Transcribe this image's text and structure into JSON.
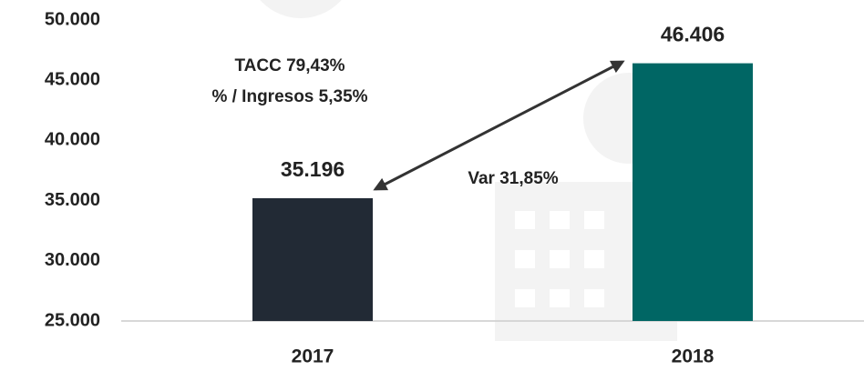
{
  "chart_data": {
    "type": "bar",
    "categories": [
      "2017",
      "2018"
    ],
    "values": [
      35196,
      46406
    ],
    "value_labels": [
      "35.196",
      "46.406"
    ],
    "colors": [
      "#222a35",
      "#006664"
    ],
    "ylim": [
      25000,
      50000
    ],
    "yticks": [
      {
        "value": 25000,
        "label": "25.000"
      },
      {
        "value": 30000,
        "label": "30.000"
      },
      {
        "value": 35000,
        "label": "35.000"
      },
      {
        "value": 40000,
        "label": "40.000"
      },
      {
        "value": 45000,
        "label": "45.000"
      },
      {
        "value": 50000,
        "label": "50.000"
      }
    ],
    "grid": false,
    "annotations": [
      "TACC 79,43%",
      "% / Ingresos 5,35%",
      "Var 31,85%"
    ]
  }
}
